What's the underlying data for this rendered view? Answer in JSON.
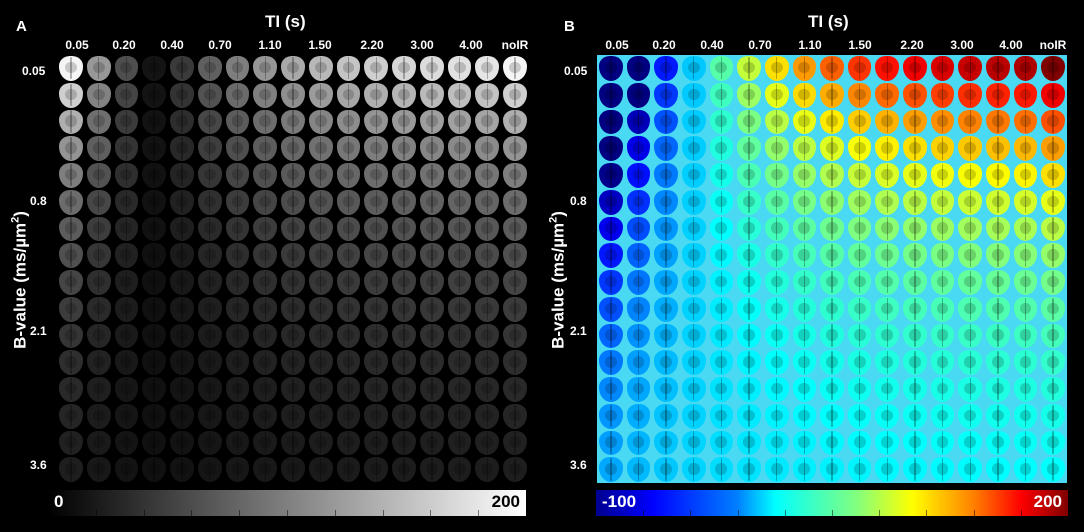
{
  "panels": [
    {
      "id": "A",
      "letter": "A",
      "x_axis_title": "TI (s)",
      "ti_labels": [
        "0.05",
        "0.20",
        "0.40",
        "0.70",
        "1.10",
        "1.50",
        "2.20",
        "3.00",
        "4.00",
        "noIR"
      ],
      "y_axis_title_main": "B-value (ms/µm",
      "y_axis_title_sup": "2",
      "y_axis_title_close": ")",
      "b_labels": [
        "0.05",
        "0.8",
        "2.1",
        "3.6"
      ],
      "colorbar": {
        "min_label": "0",
        "max_label": "200",
        "colormap": "gray",
        "min_color": "#000000",
        "max_color": "#ffffff"
      }
    },
    {
      "id": "B",
      "letter": "B",
      "x_axis_title": "TI (s)",
      "ti_labels": [
        "0.05",
        "0.20",
        "0.40",
        "0.70",
        "1.10",
        "1.50",
        "2.20",
        "3.00",
        "4.00",
        "noIR"
      ],
      "y_axis_title_main": "B-value (ms/µm",
      "y_axis_title_sup": "2",
      "y_axis_title_close": ")",
      "b_labels": [
        "0.05",
        "0.8",
        "2.1",
        "3.6"
      ],
      "colorbar": {
        "min_label": "-100",
        "max_label": "200",
        "colormap": "jet",
        "min_color": "#00008f",
        "max_color": "#800000"
      }
    }
  ],
  "grid": {
    "rows": 16,
    "cols": 17
  }
}
